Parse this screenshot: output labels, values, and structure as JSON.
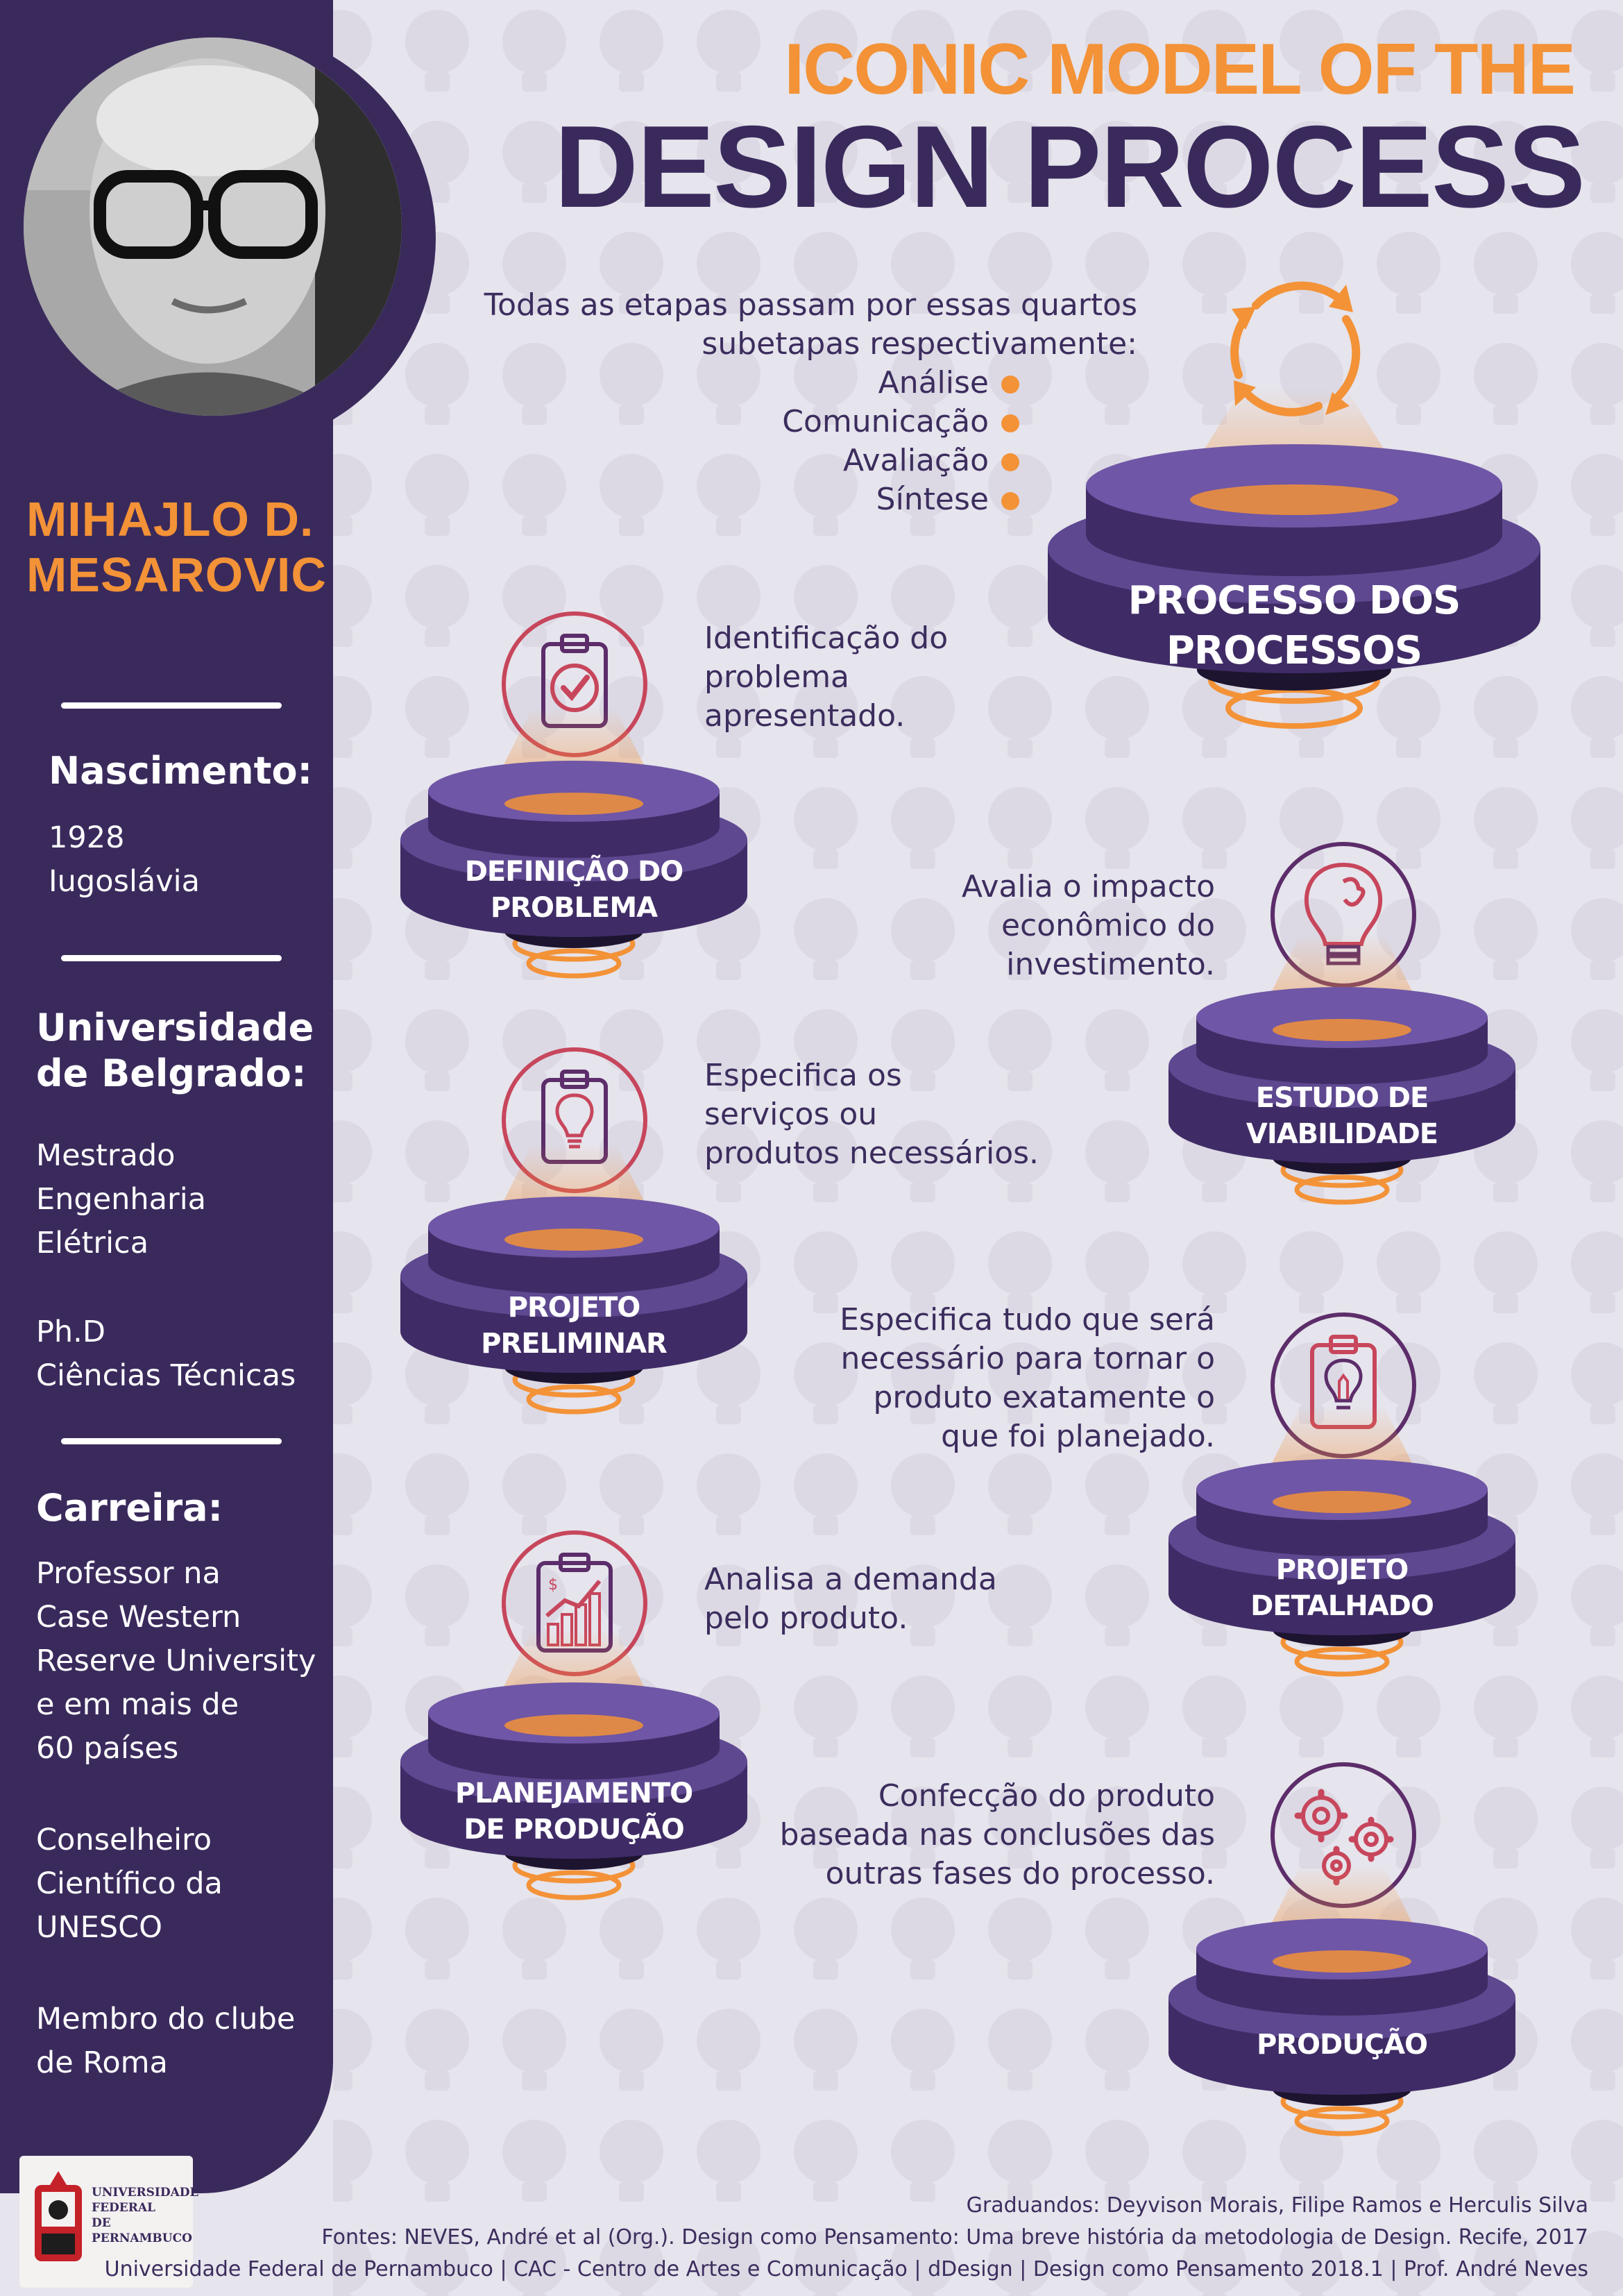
{
  "title": {
    "line1": "ICONIC MODEL OF THE",
    "line2": "DESIGN PROCESS"
  },
  "person": {
    "name": "MIHAJLO D.\nMESAROVIC",
    "birth": {
      "heading": "Nascimento:",
      "text": "1928\nIugoslávia"
    },
    "university": {
      "heading": "Universidade\nde Belgrado:",
      "text": "Mestrado\nEngenharia\nElétrica",
      "text2": "Ph.D\nCiências Técnicas"
    },
    "career": {
      "heading": "Carreira:",
      "items": [
        "Professor na\nCase Western\nReserve University\ne em mais de\n60 países",
        "Conselheiro\nCientífico da\nUNESCO",
        "Membro do clube\nde Roma"
      ]
    }
  },
  "intro": {
    "text": "Todas as etapas passam por essas quartos\nsubetapas respectivamente:",
    "substeps": [
      "Análise",
      "Comunicação",
      "Avaliação",
      "Síntese"
    ]
  },
  "stages": [
    {
      "label": "PROCESSO DOS\nPROCESSOS",
      "icon": "cycle-arrows-icon",
      "description": ""
    },
    {
      "label": "DEFINIÇÃO DO\nPROBLEMA",
      "icon": "clipboard-check-icon",
      "description": "Identificação do\nproblema\napresentado."
    },
    {
      "label": "ESTUDO DE\nVIABILIDADE",
      "icon": "lightbulb-idea-icon",
      "description": "Avalia o impacto\neconômico do\ninvestimento."
    },
    {
      "label": "PROJETO\nPRELIMINAR",
      "icon": "clipboard-lightbulb-icon",
      "description": "Especifica os\nserviços ou\nprodutos necessários."
    },
    {
      "label": "PROJETO\nDETALHADO",
      "icon": "clipboard-lightbulb-detail-icon",
      "description": "Especifica tudo que será\nnecessário para tornar o\nproduto exatamente o\nque foi planejado."
    },
    {
      "label": "PLANEJAMENTO\nDE PRODUÇÃO",
      "icon": "clipboard-chart-icon",
      "description": "Analisa a demanda\npelo produto."
    },
    {
      "label": "PRODUÇÃO",
      "icon": "gears-icon",
      "description": "Confecção do produto\nbaseada nas conclusões das\noutras fases do processo."
    }
  ],
  "footer": {
    "line1": "Graduandos: Deyvison Morais, Filipe Ramos e Herculis Silva",
    "line2": "Fontes: NEVES, André et al (Org.). Design como Pensamento: Uma breve história da metodologia de Design. Recife, 2017",
    "line3": "Universidade Federal de Pernambuco | CAC - Centro de Artes e Comunicação | dDesign | Design como Pensamento 2018.1 | Prof. André Neves"
  },
  "logo": {
    "text": "UNIVERSIDADE\nFEDERAL\nDE PERNAMBUCO"
  },
  "colors": {
    "purple": "#3a2a5c",
    "platform": "#5e4890",
    "orange": "#f39237",
    "background": "#e6e4ec"
  }
}
